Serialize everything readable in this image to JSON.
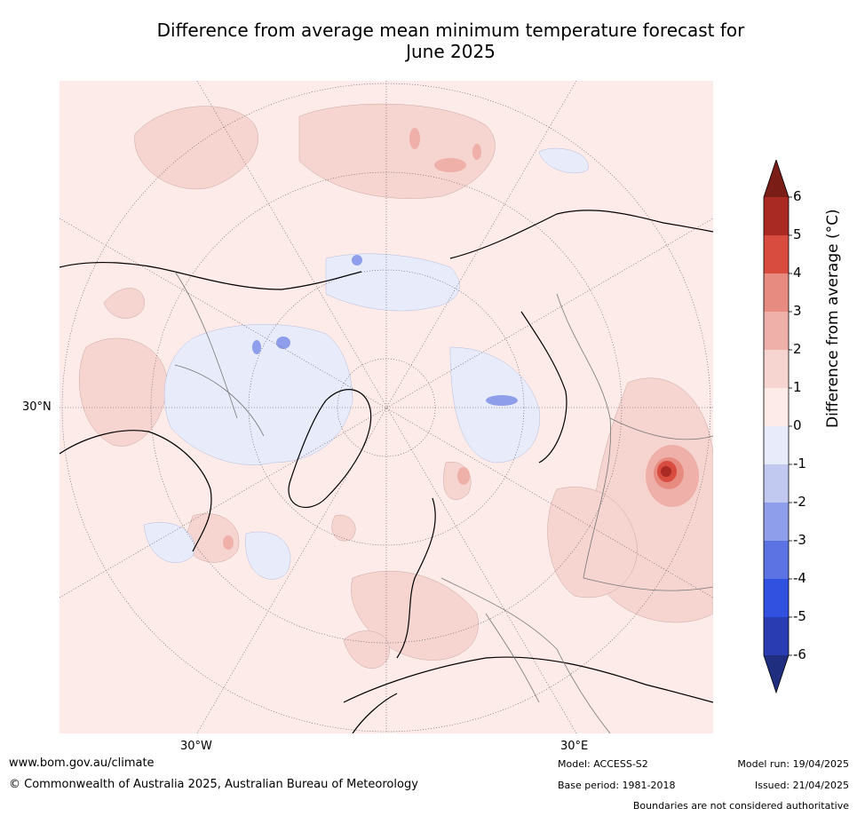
{
  "title_line1": "Difference from average mean minimum temperature forecast for",
  "title_line2": "June 2025",
  "map": {
    "projection": "north-polar-stereographic",
    "lat_label": "30°N",
    "lon_labels": [
      "30°W",
      "30°E"
    ],
    "notable_feature": "strong warm anomaly over north-east Asia (Lake Baikal region)"
  },
  "colorbar": {
    "label": "Difference from average (°C)",
    "ticks": [
      "6",
      "5",
      "4",
      "3",
      "2",
      "1",
      "0",
      "-1",
      "-2",
      "-3",
      "-4",
      "-5",
      "-6"
    ],
    "colors": [
      "#7a1d17",
      "#a92a22",
      "#d84b3f",
      "#e78b80",
      "#eeb0a8",
      "#f6d5d1",
      "#fcebe8",
      "#e8ecfa",
      "#c1c9f1",
      "#8f9eea",
      "#5c73e4",
      "#3151e0",
      "#2a3cb1",
      "#202e80"
    ],
    "extend": "both"
  },
  "footer": {
    "url": "www.bom.gov.au/climate",
    "copyright": "© Commonwealth of Australia 2025, Australian Bureau of Meteorology",
    "model": "Model: ACCESS-S2",
    "base_period": "Base period: 1981-2018",
    "model_run": "Model run: 19/04/2025",
    "issued": "Issued: 21/04/2025",
    "disclaimer": "Boundaries are not considered authoritative"
  }
}
